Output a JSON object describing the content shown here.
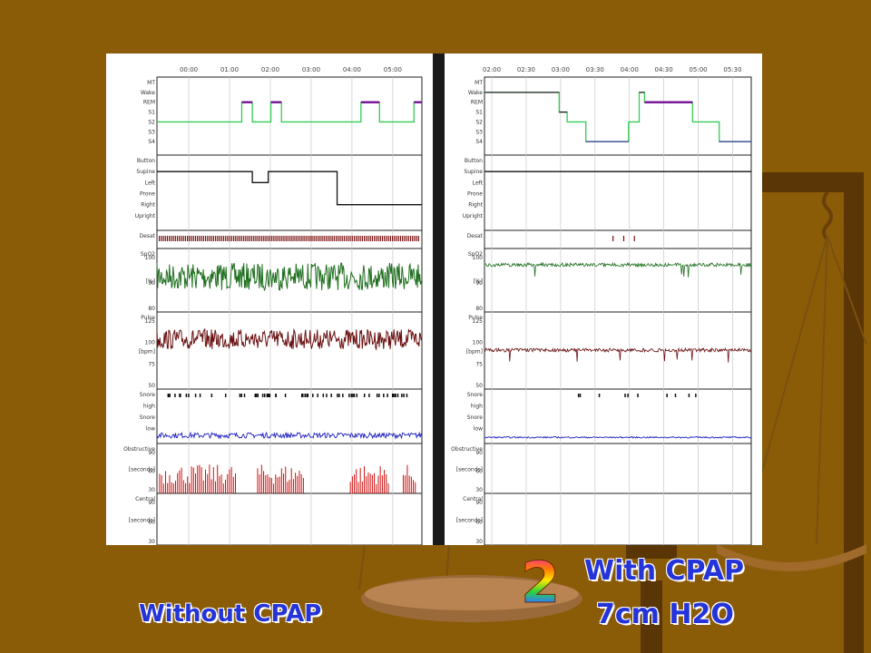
{
  "slide": {
    "caption_left": "Without CPAP",
    "caption_right_1": "With CPAP",
    "caption_right_2": "7cm H2O",
    "badge": "2"
  },
  "colors": {
    "background": "#8a5c08",
    "hypnogram_stage": "#33cc55",
    "hypnogram_rem": "#7a1a9a",
    "spo2": "#1f6f1f",
    "pulse": "#6a1010",
    "snore": "#2020c0",
    "obstructive": "#cc1010",
    "desat_marks": "#7a1010",
    "caption": "#2434d8"
  },
  "chart_data": [
    {
      "type": "line",
      "panel": "Without CPAP",
      "x_ticks": [
        "00:00",
        "01:00",
        "02:00",
        "03:00",
        "04:00",
        "05:00"
      ],
      "tracks": [
        {
          "id": "hypnogram",
          "labels": [
            "MT",
            "Wake",
            "REM",
            "S1",
            "S2",
            "S3",
            "S4"
          ],
          "segments": [
            [
              "S2",
              0,
              0.03
            ],
            [
              "S2",
              0.03,
              0.32
            ],
            [
              "REM",
              0.32,
              0.36
            ],
            [
              "S2",
              0.36,
              0.43
            ],
            [
              "REM",
              0.43,
              0.47
            ],
            [
              "S2",
              0.47,
              0.77
            ],
            [
              "REM",
              0.77,
              0.84
            ],
            [
              "S2",
              0.84,
              0.97
            ],
            [
              "REM",
              0.97,
              1.0
            ]
          ]
        },
        {
          "id": "position",
          "labels": [
            "Button",
            "Supine",
            "Left",
            "Prone",
            "Right",
            "Upright"
          ],
          "segments": [
            [
              "Supine",
              0,
              0.36
            ],
            [
              "Left",
              0.36,
              0.42
            ],
            [
              "Supine",
              0.42,
              0.68
            ],
            [
              "Right",
              0.68,
              1.0
            ]
          ]
        },
        {
          "id": "desat",
          "labels": [
            "Desat"
          ],
          "density": "high"
        },
        {
          "id": "spo2",
          "labels": [
            "SpO2",
            "[%]"
          ],
          "ticks": [
            100,
            90,
            80
          ],
          "baseline": 95,
          "noise": "high"
        },
        {
          "id": "pulse",
          "labels": [
            "Pulse",
            "[bpm]"
          ],
          "ticks": [
            125,
            100,
            75,
            50
          ],
          "baseline": 85,
          "noise": "high"
        },
        {
          "id": "snore",
          "labels": [
            "Snore",
            "high",
            "Snore",
            "low"
          ],
          "density": "high"
        },
        {
          "id": "obstructive",
          "labels": [
            "Obstructive",
            "[seconds]"
          ],
          "ticks": [
            90,
            60,
            30
          ],
          "density": "high"
        },
        {
          "id": "central",
          "labels": [
            "Central",
            "[seconds]"
          ],
          "ticks": [
            90,
            60,
            30
          ],
          "density": "none"
        }
      ]
    },
    {
      "type": "line",
      "panel": "With CPAP 7cm H2O",
      "x_ticks": [
        "02:00",
        "02:30",
        "03:00",
        "03:30",
        "04:00",
        "04:30",
        "05:00",
        "05:30"
      ],
      "tracks": [
        {
          "id": "hypnogram",
          "labels": [
            "MT",
            "Wake",
            "REM",
            "S1",
            "S2",
            "S3",
            "S4"
          ],
          "segments": [
            [
              "Wake",
              0,
              0.28
            ],
            [
              "S1",
              0.28,
              0.31
            ],
            [
              "S2",
              0.31,
              0.38
            ],
            [
              "S4",
              0.38,
              0.54
            ],
            [
              "S2",
              0.54,
              0.58
            ],
            [
              "Wake",
              0.58,
              0.6
            ],
            [
              "REM",
              0.6,
              0.78
            ],
            [
              "S2",
              0.78,
              0.88
            ],
            [
              "S4",
              0.88,
              1.0
            ]
          ]
        },
        {
          "id": "position",
          "labels": [
            "Button",
            "Supine",
            "Left",
            "Prone",
            "Right",
            "Upright"
          ],
          "segments": [
            [
              "Supine",
              0,
              1.0
            ]
          ]
        },
        {
          "id": "desat",
          "labels": [
            "Desat"
          ],
          "density": "low"
        },
        {
          "id": "spo2",
          "labels": [
            "SpO2",
            "[%]"
          ],
          "ticks": [
            100,
            90,
            80
          ],
          "baseline": 97,
          "noise": "low"
        },
        {
          "id": "pulse",
          "labels": [
            "Pulse",
            "[bpm]"
          ],
          "ticks": [
            125,
            100,
            75,
            50
          ],
          "baseline": 68,
          "noise": "low"
        },
        {
          "id": "snore",
          "labels": [
            "Snore",
            "high",
            "Snore",
            "low"
          ],
          "density": "low"
        },
        {
          "id": "obstructive",
          "labels": [
            "Obstructive",
            "[seconds]"
          ],
          "ticks": [
            90,
            60,
            30
          ],
          "density": "none"
        },
        {
          "id": "central",
          "labels": [
            "Central",
            "[seconds]"
          ],
          "ticks": [
            90,
            60,
            30
          ],
          "density": "none"
        }
      ]
    }
  ]
}
